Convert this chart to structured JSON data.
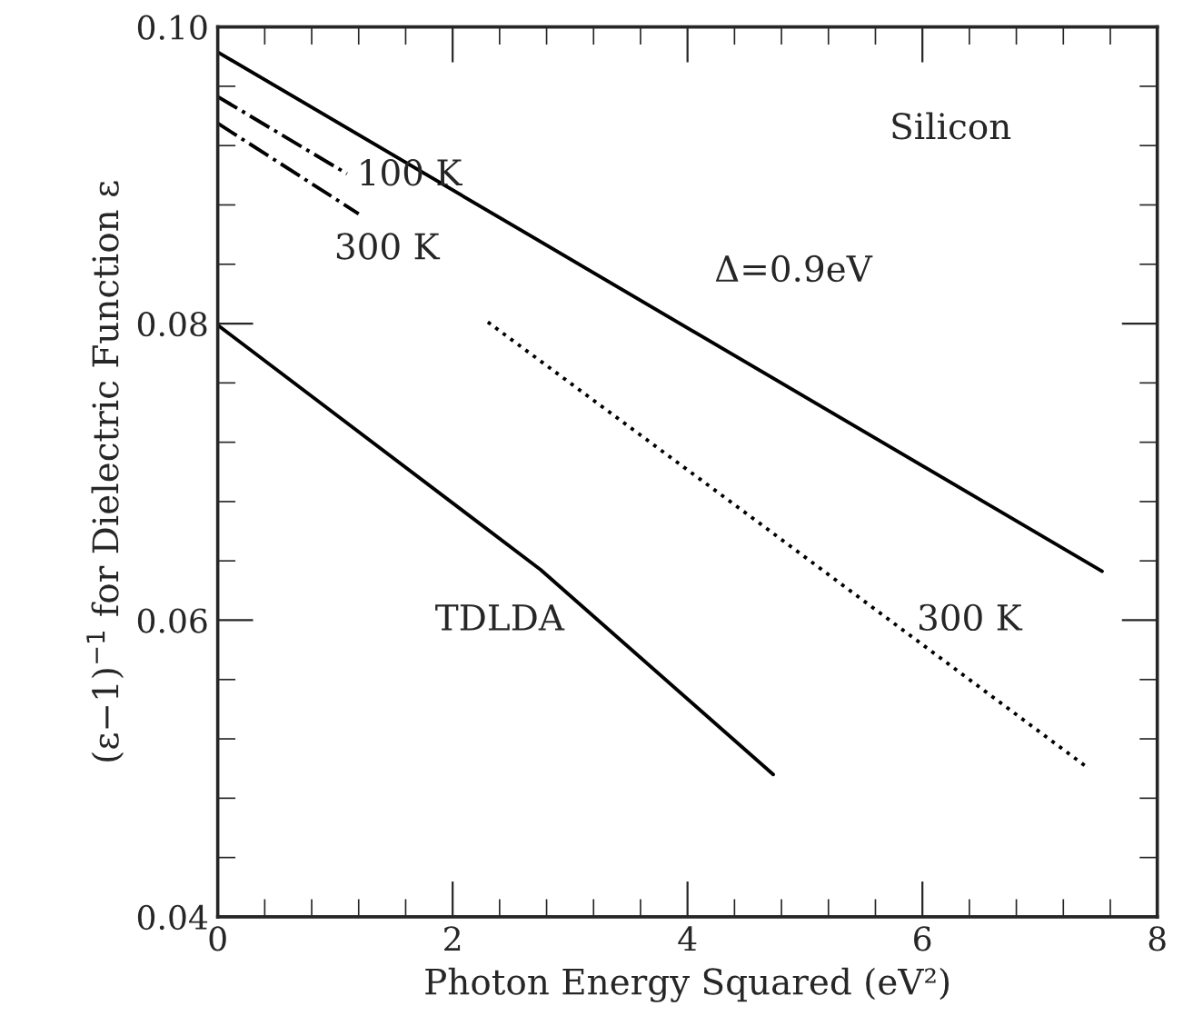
{
  "chart_data": {
    "type": "line",
    "xlabel": "Photon Energy Squared (eV²)",
    "ylabel": "(ε−1)$^{−1}$ for Dielectric Function ε",
    "xlim": [
      0,
      8
    ],
    "ylim": [
      0.04,
      0.1
    ],
    "xticks": [
      0,
      2,
      4,
      6,
      8
    ],
    "yticks": [
      {
        "value": 0.04,
        "label": "0.04"
      },
      {
        "value": 0.06,
        "label": "0.06"
      },
      {
        "value": 0.08,
        "label": "0.08"
      },
      {
        "value": 0.1,
        "label": "0.10"
      }
    ],
    "grid": false,
    "legend": false,
    "marker": "none",
    "series": [
      {
        "name": "Δ=0.9eV",
        "color": "#000000",
        "line_style": "solid",
        "x": [
          0,
          7.53
        ],
        "values": [
          0.0983,
          0.0633
        ]
      },
      {
        "name": "TDLDA",
        "color": "#000000",
        "line_style": "solid",
        "x": [
          0,
          2.75,
          4.73
        ],
        "values": [
          0.0799,
          0.0634,
          0.0496
        ]
      },
      {
        "name": "300 K",
        "color": "#000000",
        "line_style": "dotted",
        "x": [
          2.3,
          4.62,
          7.4
        ],
        "values": [
          0.0801,
          0.0665,
          0.0501
        ]
      },
      {
        "name": "100 K",
        "color": "#000000",
        "line_style": "dashdot",
        "x": [
          0,
          1.1
        ],
        "values": [
          0.0953,
          0.0901
        ]
      },
      {
        "name": "300 K",
        "color": "#000000",
        "line_style": "dashdot",
        "x": [
          0,
          1.2
        ],
        "values": [
          0.0935,
          0.0874
        ]
      }
    ],
    "annotations": [
      "Silicon"
    ]
  }
}
